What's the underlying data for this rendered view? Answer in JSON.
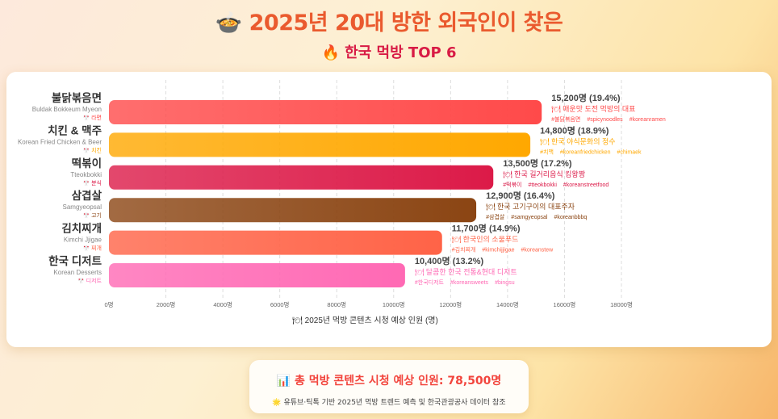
{
  "header": {
    "title": "2025년 20대 방한 외국인이 찾은",
    "title_icon": "cooking-pot-icon",
    "subtitle": "🔥 한국 먹방 TOP 6"
  },
  "chart_data": {
    "type": "bar",
    "orientation": "horizontal",
    "categories": [
      "불닭볶음면",
      "치킨 & 맥주",
      "떡볶이",
      "삼겹살",
      "김치찌개",
      "한국 디저트"
    ],
    "english_names": [
      "Buldak Bokkeum Myeon",
      "Korean Fried Chicken & Beer",
      "Tteokbokki",
      "Samgyeopsal",
      "Kimchi Jjigae",
      "Korean Desserts"
    ],
    "tags": [
      "라면",
      "치킨",
      "분식",
      "고기",
      "찌개",
      "디저트"
    ],
    "values": [
      15200,
      14800,
      13500,
      12900,
      11700,
      10400
    ],
    "value_labels": [
      "15,200명 (19.4%)",
      "14,800명 (18.9%)",
      "13,500명 (17.2%)",
      "12,900명 (16.4%)",
      "11,700명 (14.9%)",
      "10,400명 (13.2%)"
    ],
    "descriptions": [
      "매운맛 도전 먹방의 대표",
      "한국 야식문화의 정수",
      "한국 길거리음식 킹왕짱",
      "한국 고기구이의 대표주자",
      "한국인의 소울푸드",
      "달콤한 한국 전통&현대 디저트"
    ],
    "hashtags": [
      [
        "#불닭볶음면",
        "#spicynoodles",
        "#koreanramen"
      ],
      [
        "#치맥",
        "#koreanfriedchicken",
        "#chimaek"
      ],
      [
        "#떡볶이",
        "#tteokbokki",
        "#koreanstreetfood"
      ],
      [
        "#삼겹살",
        "#samgyeopsal",
        "#koreanbbbq"
      ],
      [
        "#김치찌개",
        "#kimchijjigae",
        "#koreanstew"
      ],
      [
        "#한국디저트",
        "#koreansweets",
        "#bingsu"
      ]
    ],
    "colors": [
      "#ff4a4a",
      "#ffa800",
      "#dc1a48",
      "#8b4513",
      "#ff6347",
      "#ff69b4"
    ],
    "xlim": [
      0,
      18000
    ],
    "xticks": [
      "0명",
      "2000명",
      "4000명",
      "6000명",
      "8000명",
      "10000명",
      "12000명",
      "14000명",
      "16000명",
      "18000명"
    ],
    "xlabel": "🍽 2025년 먹방 콘텐츠 시청 예상 인원 (명)",
    "grid": true
  },
  "footer": {
    "total": "📊 총 먹방 콘텐츠 시청 예상 인원: 78,500명",
    "note": "🌟 유튜브·틱톡 기반 2025년 먹방 트렌드 예측 및 한국관광공사 데이터 참조"
  }
}
